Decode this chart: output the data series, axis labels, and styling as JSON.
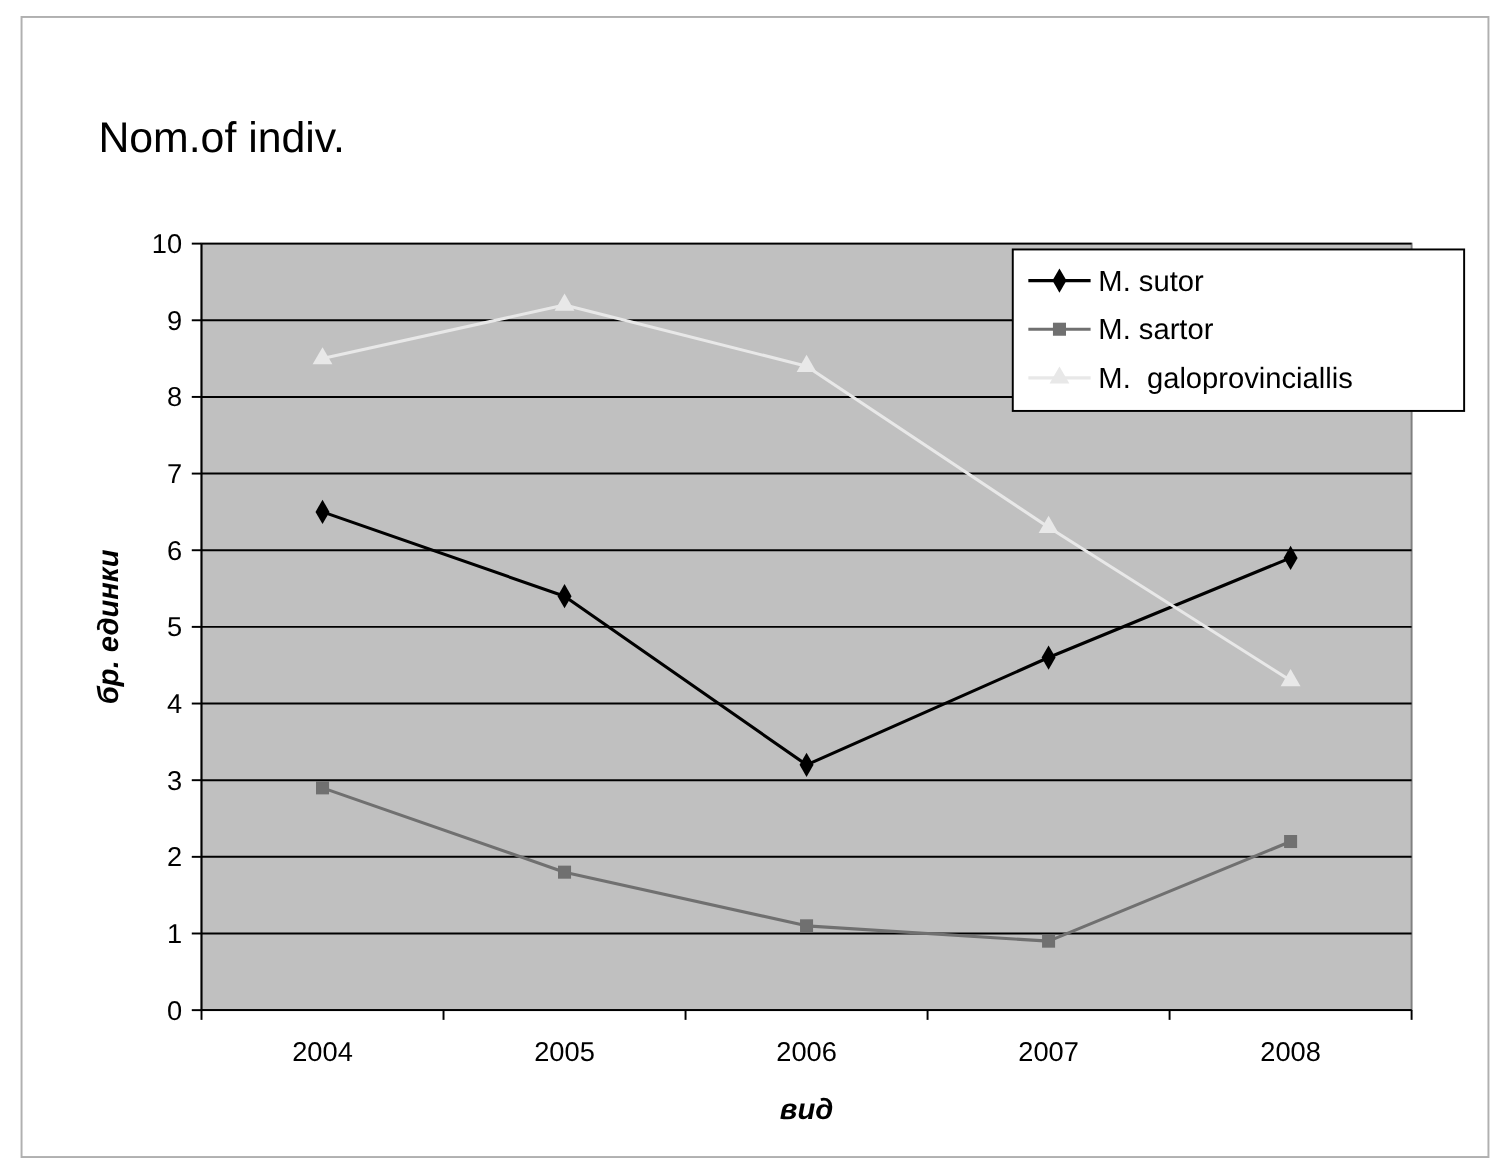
{
  "chart_data": {
    "type": "line",
    "title": "Nom.of indiv.",
    "xlabel": "вид",
    "ylabel": "бр. единки",
    "categories": [
      "2004",
      "2005",
      "2006",
      "2007",
      "2008"
    ],
    "series": [
      {
        "name": "M. sutor",
        "color": "#000000",
        "marker": "diamond",
        "values": [
          6.5,
          5.4,
          3.2,
          4.6,
          5.9
        ]
      },
      {
        "name": "M. sartor",
        "color": "#707070",
        "marker": "square",
        "values": [
          2.9,
          1.8,
          1.1,
          0.9,
          2.2
        ]
      },
      {
        "name": "M.  galoprovinciallis",
        "color": "#e8e8e8",
        "marker": "triangle",
        "values": [
          8.5,
          9.2,
          8.4,
          6.3,
          4.3
        ]
      }
    ],
    "ylim": [
      0,
      10
    ],
    "yticks": [
      0,
      1,
      2,
      3,
      4,
      5,
      6,
      7,
      8,
      9,
      10
    ],
    "grid": "y",
    "legend": "top right"
  }
}
